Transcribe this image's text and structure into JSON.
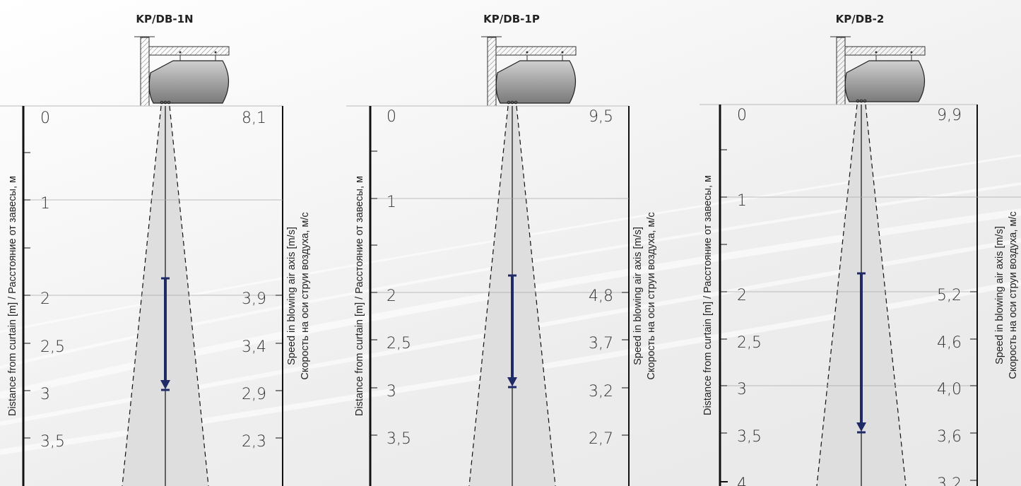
{
  "panels": [
    {
      "title": "KP/DB-1N",
      "left_axis_label": "Distance from curtain [m] / Расстояние от завесы, м",
      "right_axis_label_1": "Speed in blowing air axis [m/s]",
      "right_axis_label_2": "Скорость на оси струи воздуха, м/с",
      "distance_ticks": [
        "0",
        "1",
        "2",
        "2,5",
        "3",
        "3,5"
      ],
      "speed_ticks": [
        "8,1",
        "3,9",
        "3,4",
        "2,9",
        "2,3"
      ],
      "throw_range_m": [
        1.7,
        3.0
      ]
    },
    {
      "title": "KP/DB-1P",
      "left_axis_label": "Distance from curtain [m] / Расстояние от завесы, м",
      "right_axis_label_1": "Speed in blowing air axis [m/s]",
      "right_axis_label_2": "Скорость на оси струи воздуха, м/с",
      "distance_ticks": [
        "0",
        "1",
        "2",
        "2,5",
        "3",
        "3,5"
      ],
      "speed_ticks": [
        "9,5",
        "4,8",
        "3,7",
        "3,2",
        "2,7"
      ],
      "throw_range_m": [
        1.7,
        3.0
      ]
    },
    {
      "title": "KP/DB-2",
      "left_axis_label": "Distance from curtain [m] / Расстояние от завесы, м",
      "right_axis_label_1": "Speed in blowing air axis [m/s]",
      "right_axis_label_2": "Скорость на оси струи воздуха, м/с",
      "distance_ticks": [
        "0",
        "1",
        "2",
        "2,5",
        "3",
        "3,5",
        "4"
      ],
      "speed_ticks": [
        "9,9",
        "5,2",
        "4,6",
        "4,0",
        "3,6",
        "3,2"
      ],
      "throw_range_m": [
        1.7,
        3.5
      ]
    }
  ]
}
